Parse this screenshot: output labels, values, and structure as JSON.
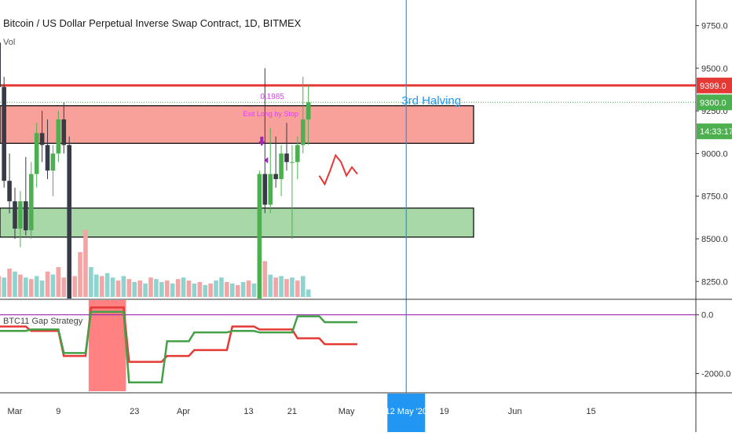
{
  "title": "Bitcoin / US Dollar Perpetual Inverse Swap Contract, 1D, BITMEX",
  "subtitle": "Vol",
  "indicator_title": "BTC11 Gap Strategy",
  "colors": {
    "up": "#4caf50",
    "down": "#373b45",
    "red_line": "#e53935",
    "red_zone": "#f8a09a",
    "green_zone": "#a8d8a8",
    "halving": "#2196f3",
    "purple": "#9c27b0",
    "vol_up": "#8fd3cf",
    "vol_down": "#f2a5a5",
    "dot": "#4caf50",
    "exit_label": "#e040fb"
  },
  "price_axis": {
    "ticks": [
      "9750.0",
      "9500.0",
      "9250.0",
      "9000.0",
      "8750.0",
      "8500.0",
      "8250.0"
    ],
    "ylim": [
      8150,
      9900
    ]
  },
  "price_tags": [
    {
      "name": "red-line-price-tag",
      "text": "9399.0",
      "value": 9399,
      "color": "#e53935"
    },
    {
      "name": "last-price-tag",
      "text": "9300.0",
      "value": 9300,
      "color": "#4caf50"
    },
    {
      "name": "countdown-tag",
      "text": "14:33:17",
      "value": 9130,
      "color": "#4caf50"
    }
  ],
  "indicator_axis": {
    "ticks": [
      "0.0",
      "-2000.0"
    ],
    "tick_values": [
      0,
      -2000
    ],
    "ylim": [
      -2600,
      500
    ]
  },
  "time_axis": {
    "labels": [
      "Mar",
      "9",
      "23",
      "Apr",
      "13",
      "21",
      "May",
      "19",
      "Jun",
      "15"
    ],
    "label_days": [
      1,
      9,
      23,
      32,
      44,
      52,
      62,
      80,
      93,
      107
    ],
    "highlight": {
      "text": "12 May '20",
      "day": 73
    }
  },
  "annotations": {
    "halving_label": "3rd Halving",
    "halving_day": 73,
    "exit_value": "0.1985",
    "exit_label": "Exit Long by Stop"
  },
  "zones": {
    "red_zone": [
      9060,
      9280
    ],
    "green_zone": [
      8510,
      8680
    ],
    "red_line": 9399,
    "dotted_line": 9300,
    "indicator_highlight_days": [
      15,
      21
    ]
  },
  "chart_data": {
    "type": "candlestick",
    "x_unit": "day (1 = Mar 1, 2020)",
    "candles": [
      {
        "d": -3,
        "o": 9700,
        "h": 9820,
        "l": 9600,
        "c": 9650
      },
      {
        "d": -2,
        "o": 9650,
        "h": 9700,
        "l": 9350,
        "c": 9390
      },
      {
        "d": -1,
        "o": 9390,
        "h": 9450,
        "l": 8800,
        "c": 8840
      },
      {
        "d": 0,
        "o": 8840,
        "h": 9000,
        "l": 8650,
        "c": 8720
      },
      {
        "d": 1,
        "o": 8720,
        "h": 8800,
        "l": 8500,
        "c": 8560
      },
      {
        "d": 2,
        "o": 8560,
        "h": 8780,
        "l": 8450,
        "c": 8720
      },
      {
        "d": 3,
        "o": 8720,
        "h": 8980,
        "l": 8520,
        "c": 8550
      },
      {
        "d": 4,
        "o": 8550,
        "h": 8950,
        "l": 8500,
        "c": 8880
      },
      {
        "d": 5,
        "o": 8880,
        "h": 9180,
        "l": 8800,
        "c": 9120
      },
      {
        "d": 6,
        "o": 9120,
        "h": 9250,
        "l": 8950,
        "c": 9050
      },
      {
        "d": 7,
        "o": 9050,
        "h": 9200,
        "l": 8850,
        "c": 8900
      },
      {
        "d": 8,
        "o": 8900,
        "h": 9050,
        "l": 8750,
        "c": 9000
      },
      {
        "d": 9,
        "o": 9000,
        "h": 9250,
        "l": 8950,
        "c": 9200
      },
      {
        "d": 10,
        "o": 9200,
        "h": 9300,
        "l": 9000,
        "c": 9050
      },
      {
        "d": 11,
        "o": 9050,
        "h": 9100,
        "l": 8150,
        "c": 8150
      },
      {
        "d": 46,
        "o": 8150,
        "h": 8900,
        "l": 8150,
        "c": 8880
      },
      {
        "d": 47,
        "o": 8880,
        "h": 9500,
        "l": 8650,
        "c": 8700
      },
      {
        "d": 48,
        "o": 8700,
        "h": 9150,
        "l": 8650,
        "c": 8880
      },
      {
        "d": 49,
        "o": 8880,
        "h": 9100,
        "l": 8800,
        "c": 8850
      },
      {
        "d": 50,
        "o": 8850,
        "h": 9050,
        "l": 8750,
        "c": 9000
      },
      {
        "d": 51,
        "o": 9000,
        "h": 9180,
        "l": 8900,
        "c": 8950
      },
      {
        "d": 52,
        "o": 8950,
        "h": 9050,
        "l": 8500,
        "c": 8950
      },
      {
        "d": 53,
        "o": 8950,
        "h": 9100,
        "l": 8850,
        "c": 9050
      },
      {
        "d": 54,
        "o": 9050,
        "h": 9450,
        "l": 9000,
        "c": 9200
      },
      {
        "d": 55,
        "o": 9200,
        "h": 9400,
        "l": 9050,
        "c": 9300
      }
    ],
    "volume": [
      {
        "d": -3,
        "v": 30,
        "up": false
      },
      {
        "d": -2,
        "v": 28,
        "up": false
      },
      {
        "d": -1,
        "v": 26,
        "up": true
      },
      {
        "d": 0,
        "v": 38,
        "up": false
      },
      {
        "d": 1,
        "v": 34,
        "up": true
      },
      {
        "d": 2,
        "v": 30,
        "up": false
      },
      {
        "d": 3,
        "v": 26,
        "up": true
      },
      {
        "d": 4,
        "v": 24,
        "up": false
      },
      {
        "d": 5,
        "v": 28,
        "up": true
      },
      {
        "d": 6,
        "v": 22,
        "up": true
      },
      {
        "d": 7,
        "v": 34,
        "up": false
      },
      {
        "d": 8,
        "v": 30,
        "up": true
      },
      {
        "d": 9,
        "v": 40,
        "up": false
      },
      {
        "d": 10,
        "v": 26,
        "up": false
      },
      {
        "d": 11,
        "v": 32,
        "up": true
      },
      {
        "d": 12,
        "v": 28,
        "up": false
      },
      {
        "d": 13,
        "v": 60,
        "up": false
      },
      {
        "d": 14,
        "v": 90,
        "up": false
      },
      {
        "d": 15,
        "v": 40,
        "up": true
      },
      {
        "d": 16,
        "v": 30,
        "up": true
      },
      {
        "d": 17,
        "v": 28,
        "up": false
      },
      {
        "d": 18,
        "v": 32,
        "up": true
      },
      {
        "d": 19,
        "v": 26,
        "up": true
      },
      {
        "d": 20,
        "v": 22,
        "up": false
      },
      {
        "d": 21,
        "v": 28,
        "up": true
      },
      {
        "d": 22,
        "v": 24,
        "up": false
      },
      {
        "d": 23,
        "v": 20,
        "up": true
      },
      {
        "d": 24,
        "v": 22,
        "up": false
      },
      {
        "d": 25,
        "v": 18,
        "up": true
      },
      {
        "d": 26,
        "v": 26,
        "up": false
      },
      {
        "d": 27,
        "v": 24,
        "up": true
      },
      {
        "d": 28,
        "v": 20,
        "up": true
      },
      {
        "d": 29,
        "v": 22,
        "up": false
      },
      {
        "d": 30,
        "v": 18,
        "up": true
      },
      {
        "d": 31,
        "v": 24,
        "up": false
      },
      {
        "d": 32,
        "v": 26,
        "up": true
      },
      {
        "d": 33,
        "v": 22,
        "up": false
      },
      {
        "d": 34,
        "v": 18,
        "up": true
      },
      {
        "d": 35,
        "v": 20,
        "up": false
      },
      {
        "d": 36,
        "v": 16,
        "up": true
      },
      {
        "d": 37,
        "v": 18,
        "up": false
      },
      {
        "d": 38,
        "v": 22,
        "up": true
      },
      {
        "d": 39,
        "v": 26,
        "up": true
      },
      {
        "d": 40,
        "v": 20,
        "up": false
      },
      {
        "d": 41,
        "v": 18,
        "up": true
      },
      {
        "d": 42,
        "v": 16,
        "up": false
      },
      {
        "d": 43,
        "v": 20,
        "up": true
      },
      {
        "d": 44,
        "v": 22,
        "up": false
      },
      {
        "d": 45,
        "v": 18,
        "up": true
      },
      {
        "d": 46,
        "v": 58,
        "up": false
      },
      {
        "d": 47,
        "v": 48,
        "up": false
      },
      {
        "d": 48,
        "v": 30,
        "up": true
      },
      {
        "d": 49,
        "v": 26,
        "up": false
      },
      {
        "d": 50,
        "v": 28,
        "up": true
      },
      {
        "d": 51,
        "v": 24,
        "up": false
      },
      {
        "d": 52,
        "v": 26,
        "up": true
      },
      {
        "d": 53,
        "v": 22,
        "up": false
      },
      {
        "d": 54,
        "v": 28,
        "up": true
      },
      {
        "d": 55,
        "v": 10,
        "up": true
      }
    ],
    "projection": [
      {
        "d": 57,
        "v": 8870
      },
      {
        "d": 58,
        "v": 8820
      },
      {
        "d": 59,
        "v": 8900
      },
      {
        "d": 60,
        "v": 8990
      },
      {
        "d": 61,
        "v": 8950
      },
      {
        "d": 62,
        "v": 8870
      },
      {
        "d": 63,
        "v": 8920
      },
      {
        "d": 64,
        "v": 8880
      }
    ],
    "indicator": {
      "series": [
        {
          "color": "#e53935",
          "points": [
            [
              -4,
              -400
            ],
            [
              3,
              -400
            ],
            [
              4,
              -550
            ],
            [
              9,
              -550
            ],
            [
              10,
              -1400
            ],
            [
              14,
              -1400
            ],
            [
              15,
              250
            ],
            [
              21,
              250
            ],
            [
              22,
              -1600
            ],
            [
              28,
              -1600
            ],
            [
              29,
              -1400
            ],
            [
              33,
              -1400
            ],
            [
              34,
              -1200
            ],
            [
              40,
              -1200
            ],
            [
              41,
              -400
            ],
            [
              45,
              -400
            ],
            [
              46,
              -500
            ],
            [
              52,
              -500
            ],
            [
              53,
              -800
            ],
            [
              57,
              -800
            ],
            [
              58,
              -1000
            ],
            [
              64,
              -1000
            ]
          ]
        },
        {
          "color": "#43a047",
          "points": [
            [
              -4,
              -550
            ],
            [
              3,
              -550
            ],
            [
              4,
              -500
            ],
            [
              9,
              -500
            ],
            [
              10,
              -1300
            ],
            [
              14,
              -1300
            ],
            [
              15,
              100
            ],
            [
              21,
              100
            ],
            [
              22,
              -2300
            ],
            [
              28,
              -2300
            ],
            [
              29,
              -900
            ],
            [
              33,
              -900
            ],
            [
              34,
              -600
            ],
            [
              40,
              -600
            ],
            [
              41,
              -550
            ],
            [
              45,
              -550
            ],
            [
              46,
              -600
            ],
            [
              52,
              -600
            ],
            [
              53,
              -50
            ],
            [
              57,
              -50
            ],
            [
              58,
              -250
            ],
            [
              64,
              -250
            ]
          ]
        }
      ]
    }
  }
}
